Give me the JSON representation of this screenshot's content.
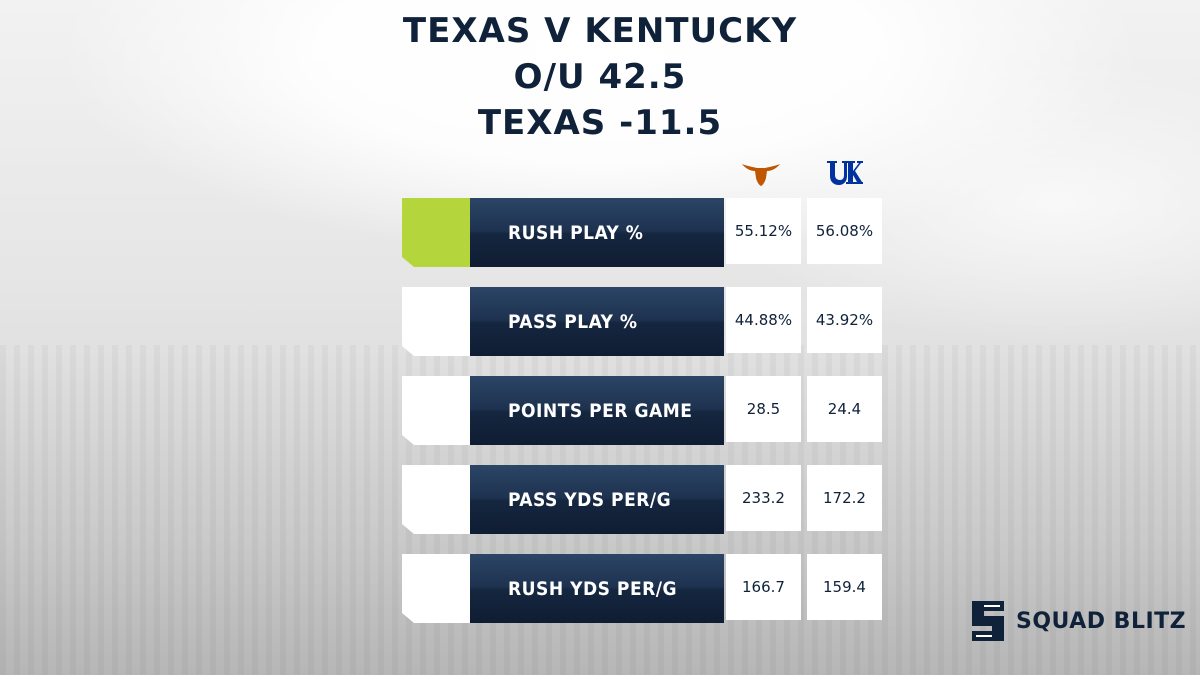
{
  "header": {
    "line1": "TEXAS V KENTUCKY",
    "line2": "O/U 42.5",
    "line3": "TEXAS -11.5"
  },
  "teams": {
    "texas": {
      "logo": "longhorn-icon",
      "color": "#bf5700"
    },
    "kentucky": {
      "logo": "uk-logo-icon",
      "color": "#0033a0"
    }
  },
  "stats": [
    {
      "label": "RUSH PLAY %",
      "texas": "55.12%",
      "kentucky": "56.08%"
    },
    {
      "label": "PASS PLAY %",
      "texas": "44.88%",
      "kentucky": "43.92%"
    },
    {
      "label": "POINTS PER GAME",
      "texas": "28.5",
      "kentucky": "24.4"
    },
    {
      "label": "PASS YDS PER/G",
      "texas": "233.2",
      "kentucky": "172.2"
    },
    {
      "label": "RUSH YDS PER/G",
      "texas": "166.7",
      "kentucky": "159.4"
    }
  ],
  "brand": {
    "name": "SQUAD BLITZ",
    "logo": "squad-blitz-logo-icon"
  },
  "colors": {
    "navy": "#0f2239",
    "accent": "#b5d53c"
  }
}
